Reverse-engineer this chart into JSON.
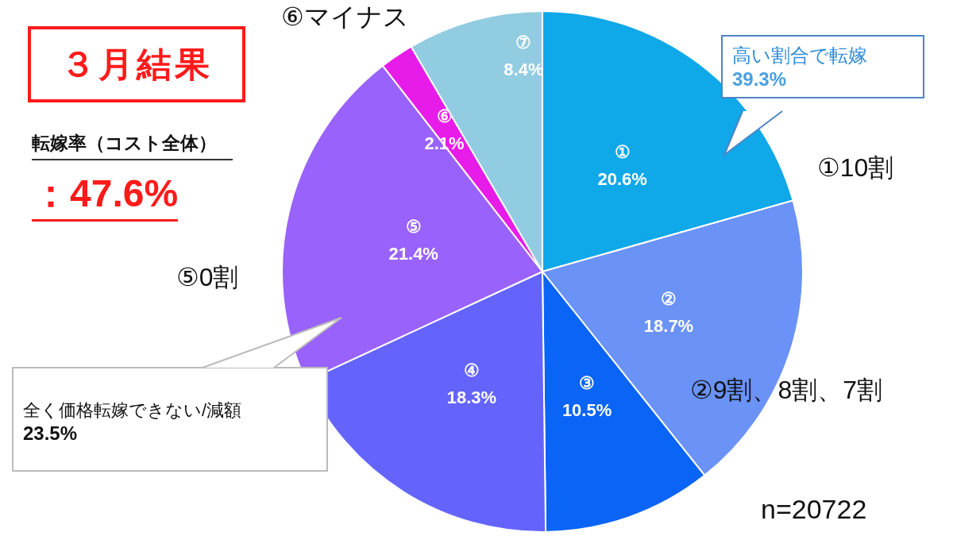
{
  "chart_data": {
    "type": "pie",
    "title": "３月結果",
    "categories": [
      "①",
      "②",
      "③",
      "④",
      "⑤",
      "⑥",
      "⑦"
    ],
    "values": [
      20.6,
      18.7,
      10.5,
      18.3,
      21.4,
      2.1,
      8.4
    ],
    "colors": [
      "#0fa8e8",
      "#6a92f7",
      "#0a64f5",
      "#6464fc",
      "#9a62fc",
      "#e81ce8",
      "#92cce0"
    ],
    "value_labels": [
      "20.6%",
      "18.7%",
      "10.5%",
      "18.3%",
      "21.4%",
      "2.1%",
      "8.4%"
    ],
    "legend": false,
    "annotations": [
      {
        "text": "①10割",
        "x": "①"
      },
      {
        "text": "②9割、8割、7割",
        "x": "②"
      },
      {
        "text": "⑤0割",
        "x": "⑤"
      },
      {
        "text": "⑥マイナス",
        "x": "⑥"
      },
      "転嫁率（コスト全体）",
      "：47.6%",
      "高い割合で転嫁\n39.3%",
      "全く価格転嫁できない/減額\n23.5%",
      "n=20722"
    ]
  }
}
